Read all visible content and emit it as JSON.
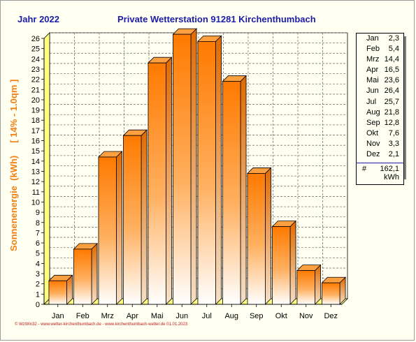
{
  "header": {
    "year_label": "Jahr  2022",
    "station_label": "Private Wetterstation 91281 Kirchenthumbach"
  },
  "chart_data": {
    "type": "bar",
    "categories": [
      "Jan",
      "Feb",
      "Mrz",
      "Apr",
      "Mai",
      "Jun",
      "Jul",
      "Aug",
      "Sep",
      "Okt",
      "Nov",
      "Dez"
    ],
    "values": [
      2.3,
      5.4,
      14.4,
      16.5,
      23.6,
      26.4,
      25.7,
      21.8,
      12.8,
      7.6,
      3.3,
      2.1
    ],
    "ylabel": "Sonnenenergie  (kWh)     [ 14% - 1.0qm ]",
    "ylim": [
      0,
      26
    ],
    "yticks": [
      "0",
      "1",
      "2",
      "3",
      "4",
      "5",
      "6",
      "7",
      "8",
      "9",
      "10",
      "11",
      "12",
      "13",
      "14",
      "15",
      "16",
      "17",
      "18",
      "19",
      "20",
      "21",
      "22",
      "23",
      "24",
      "25",
      "26"
    ],
    "grid": true,
    "legend_position": "right"
  },
  "legend": {
    "rows": [
      {
        "month": "Jan",
        "value": "2,3"
      },
      {
        "month": "Feb",
        "value": "5,4"
      },
      {
        "month": "Mrz",
        "value": "14,4"
      },
      {
        "month": "Apr",
        "value": "16,5"
      },
      {
        "month": "Mai",
        "value": "23,6"
      },
      {
        "month": "Jun",
        "value": "26,4"
      },
      {
        "month": "Jul",
        "value": "25,7"
      },
      {
        "month": "Aug",
        "value": "21,8"
      },
      {
        "month": "Sep",
        "value": "12,8"
      },
      {
        "month": "Okt",
        "value": "7,6"
      },
      {
        "month": "Nov",
        "value": "3,3"
      },
      {
        "month": "Dez",
        "value": "2,1"
      }
    ],
    "total_symbol": "#",
    "total_value": "162,1",
    "total_unit": "kWh"
  },
  "footer": {
    "text": "© WzWin32 - www.wetter-kirchenthumbach.de - www.kirchenthumbach-wetter.de   01.01.2023"
  },
  "colors": {
    "bar_top": "#ff7f00",
    "bar_bottom": "#ffffff",
    "axis_wall": "#ffff80",
    "header_text": "#1c1ca8",
    "ylabel_text": "#f07f10",
    "footer_text": "#c01818"
  }
}
